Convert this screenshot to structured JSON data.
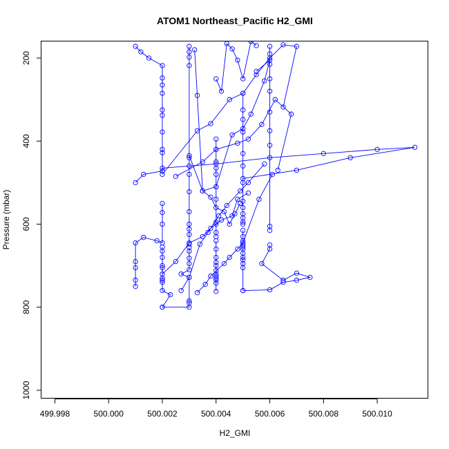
{
  "chart_data": {
    "type": "line",
    "title": "ATOM1 Northeast_Pacific H2_GMI",
    "xlabel": "H2_GMI",
    "ylabel": "Pressure (mbar)",
    "xlim": [
      499.9975,
      500.0119
    ],
    "ylim": [
      1020,
      160
    ],
    "y_reversed": true,
    "x_ticks": [
      "499.998",
      "500.000",
      "500.002",
      "500.004",
      "500.006",
      "500.008",
      "500.010"
    ],
    "x_tick_values": [
      499.998,
      500.0,
      500.002,
      500.004,
      500.006,
      500.008,
      500.01
    ],
    "y_ticks": [
      "200",
      "400",
      "600",
      "800",
      "1000"
    ],
    "y_tick_values": [
      200,
      400,
      600,
      800,
      1000
    ],
    "grid": false,
    "legend": "none",
    "color": "#0000ff",
    "marker": "open-circle",
    "series": [
      {
        "x": [
          500.001,
          500.0012,
          500.0015,
          500.002,
          500.002,
          500.002,
          500.002,
          500.002,
          500.002,
          500.002,
          500.002,
          500.002,
          500.002,
          500.0013,
          500.001
        ],
        "y": [
          172,
          185,
          200,
          218,
          248,
          265,
          285,
          325,
          338,
          378,
          420,
          428,
          472,
          480,
          500
        ]
      },
      {
        "x": [
          500.002,
          500.002,
          500.002,
          500.002,
          500.0018,
          500.0013,
          500.001,
          500.001,
          500.001,
          500.001,
          500.001
        ],
        "y": [
          550,
          572,
          600,
          645,
          640,
          632,
          645,
          690,
          705,
          735,
          750
        ]
      },
      {
        "x": [
          500.002,
          500.002,
          500.002,
          500.002,
          500.002,
          500.002,
          500.002,
          500.002,
          500.002,
          500.0023,
          500.002
        ],
        "y": [
          655,
          665,
          680,
          700,
          705,
          730,
          735,
          740,
          760,
          770,
          800
        ]
      },
      {
        "x": [
          500.003,
          500.003,
          500.003,
          500.003,
          500.003,
          500.003,
          500.003,
          500.003,
          500.003,
          500.003,
          500.003,
          500.003,
          500.003
        ],
        "y": [
          172,
          185,
          198,
          218,
          440,
          460,
          480,
          522,
          570,
          600,
          612,
          625,
          648
        ]
      },
      {
        "x": [
          500.003,
          500.003,
          500.003,
          500.003,
          500.003,
          500.0027,
          500.003,
          500.003,
          500.003,
          500.003,
          500.002
        ],
        "y": [
          656,
          665,
          682,
          695,
          710,
          720,
          728,
          785,
          790,
          800,
          800
        ]
      },
      {
        "x": [
          500.004,
          500.004,
          500.004,
          500.004,
          500.004,
          500.004,
          500.004,
          500.004,
          500.004,
          500.004,
          500.004
        ],
        "y": [
          395,
          420,
          450,
          465,
          480,
          510,
          540,
          595,
          600,
          620,
          630
        ]
      },
      {
        "x": [
          500.004,
          500.004,
          500.004,
          500.004,
          500.004,
          500.004,
          500.004,
          500.004,
          500.004,
          500.004,
          500.004,
          500.004
        ],
        "y": [
          640,
          660,
          680,
          692,
          700,
          712,
          720,
          725,
          730,
          735,
          742,
          762
        ]
      },
      {
        "x": [
          500.005,
          500.005,
          500.005,
          500.005,
          500.005,
          500.005,
          500.005,
          500.005,
          500.005,
          500.005,
          500.005,
          500.005,
          500.005
        ],
        "y": [
          285,
          325,
          348,
          378,
          430,
          460,
          500,
          545,
          560,
          575,
          585,
          595,
          600
        ]
      },
      {
        "x": [
          500.005,
          500.005,
          500.005,
          500.005,
          500.005,
          500.005,
          500.005,
          500.005,
          500.005,
          500.005,
          500.005,
          500.005
        ],
        "y": [
          615,
          630,
          640,
          650,
          655,
          660,
          670,
          680,
          686,
          695,
          705,
          760
        ]
      },
      {
        "x": [
          500.006,
          500.006,
          500.006,
          500.006,
          500.006,
          500.006,
          500.006,
          500.006,
          500.006,
          500.006
        ],
        "y": [
          172,
          190,
          215,
          250,
          280,
          330,
          375,
          410,
          605,
          615
        ]
      },
      {
        "x": [
          500.006,
          500.006,
          500.0057,
          500.0065,
          500.007,
          500.0075,
          500.007,
          500.0065,
          500.006,
          500.005
        ],
        "y": [
          650,
          660,
          695,
          735,
          718,
          728,
          735,
          740,
          758,
          760
        ]
      },
      {
        "x": [
          500.002,
          500.0033,
          500.0038,
          500.0045,
          500.005,
          500.0055,
          500.006,
          500.0065,
          500.007,
          500.0065
        ],
        "y": [
          480,
          375,
          358,
          300,
          285,
          240,
          200,
          168,
          172,
          318
        ]
      },
      {
        "x": [
          500.0025,
          500.0035,
          500.004,
          500.0048,
          500.0052,
          500.0057,
          500.0062,
          500.0068,
          500.0063
        ],
        "y": [
          485,
          450,
          420,
          405,
          395,
          360,
          300,
          335,
          470
        ]
      },
      {
        "x": [
          500.003,
          500.0035,
          500.004,
          500.0046,
          500.005,
          500.0053,
          500.0058,
          500.006,
          500.0055
        ],
        "y": [
          435,
          520,
          510,
          385,
          370,
          335,
          255,
          205,
          232
        ]
      },
      {
        "x": [
          500.002,
          500.004,
          500.006,
          500.008,
          500.01,
          500.0114,
          500.009,
          500.007,
          500.005
        ],
        "y": [
          465,
          455,
          440,
          430,
          420,
          415,
          440,
          470,
          490
        ]
      },
      {
        "x": [
          500.002,
          500.0025,
          500.003,
          500.0035,
          500.0038,
          500.0042,
          500.0046,
          500.0048,
          500.0052
        ],
        "y": [
          720,
          690,
          645,
          630,
          610,
          590,
          580,
          540,
          525
        ]
      },
      {
        "x": [
          500.0033,
          500.0036,
          500.0038,
          500.0043,
          500.0045,
          500.0048,
          500.005,
          500.0056,
          500.0061
        ],
        "y": [
          765,
          745,
          725,
          695,
          680,
          660,
          645,
          540,
          480
        ]
      },
      {
        "x": [
          500.0027,
          500.003,
          500.0034,
          500.0037,
          500.0041,
          500.0044,
          500.0049,
          500.0052,
          500.0058
        ],
        "y": [
          760,
          728,
          648,
          620,
          580,
          555,
          520,
          500,
          455
        ]
      },
      {
        "x": [
          500.0032,
          500.0033,
          500.0035,
          500.0038,
          500.004,
          500.0043,
          500.0045,
          500.0047,
          500.0049
        ],
        "y": [
          180,
          290,
          520,
          535,
          560,
          570,
          600,
          575,
          550
        ]
      },
      {
        "x": [
          500.004,
          500.0042,
          500.0044,
          500.0046,
          500.0048,
          500.005,
          500.0053,
          500.0055
        ],
        "y": [
          250,
          280,
          165,
          178,
          205,
          250,
          160,
          170
        ]
      }
    ]
  }
}
